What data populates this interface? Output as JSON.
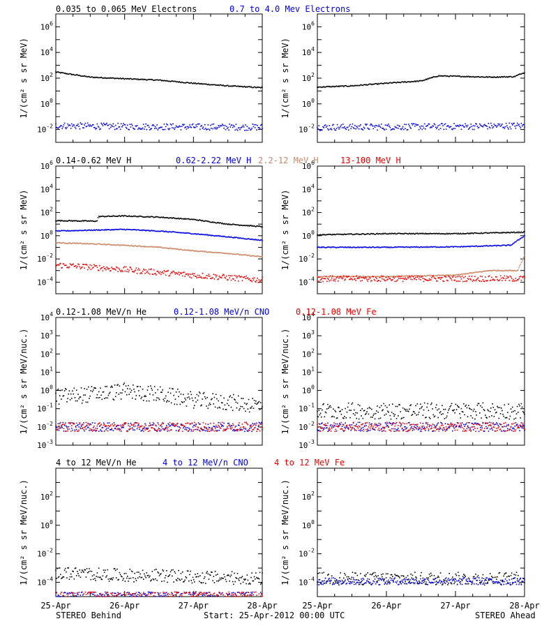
{
  "colors": {
    "black": "#000000",
    "blue": "#0000ee",
    "tan": "#cc8866",
    "red": "#ee0000"
  },
  "footer": {
    "left": "STEREO Behind",
    "center": "Start: 25-Apr-2012 00:00 UTC",
    "right": "STEREO Ahead"
  },
  "x_ticks": [
    "25-Apr",
    "26-Apr",
    "27-Apr",
    "28-Apr"
  ],
  "rows": [
    {
      "legend": [
        {
          "text": "0.035 to 0.065 MeV Electrons",
          "color": "#000000"
        },
        {
          "text": "0.7 to 4.0 Mev Electrons",
          "color": "#0000ee"
        }
      ],
      "ylabel": "1/(cm² s sr MeV)",
      "ylog_range": [
        -3,
        7
      ],
      "tick_exps": [
        -2,
        0,
        2,
        4,
        6
      ]
    },
    {
      "legend": [
        {
          "text": "0.14-0.62 MeV H",
          "color": "#000000"
        },
        {
          "text": "0.62-2.22 MeV H",
          "color": "#0000ee"
        },
        {
          "text": "2.2-12 MeV H",
          "color": "#cc8866"
        },
        {
          "text": "13-100 MeV H",
          "color": "#ee0000"
        }
      ],
      "ylabel": "1/(cm² s sr MeV)",
      "ylog_range": [
        -5,
        6
      ],
      "tick_exps": [
        -4,
        -2,
        0,
        2,
        4,
        6
      ]
    },
    {
      "legend": [
        {
          "text": "0.12-1.08 MeV/n He",
          "color": "#000000"
        },
        {
          "text": "0.12-1.08 MeV/n CNO",
          "color": "#0000ee"
        },
        {
          "text": "0.12-1.08 MeV Fe",
          "color": "#ee0000"
        }
      ],
      "ylabel": "1/(cm² s sr MeV/nuc.)",
      "ylog_range": [
        -3,
        4
      ],
      "tick_exps": [
        -3,
        -2,
        -1,
        0,
        1,
        2,
        3,
        4
      ]
    },
    {
      "legend": [
        {
          "text": "4 to 12 MeV/n He",
          "color": "#000000"
        },
        {
          "text": "4 to 12 MeV/n CNO",
          "color": "#0000ee"
        },
        {
          "text": "4 to 12 MeV Fe",
          "color": "#ee0000"
        }
      ],
      "ylabel": "1/(cm² s sr MeV/nuc.)",
      "ylog_range": [
        -5,
        4
      ],
      "tick_exps": [
        -4,
        -2,
        0,
        2
      ]
    }
  ],
  "chart_data": [
    {
      "type": "scatter",
      "panel": "STEREO Behind electrons",
      "ylog": true,
      "x_days": [
        0,
        3
      ],
      "series": [
        {
          "name": "0.035 to 0.065 MeV Electrons",
          "color": "#000000",
          "x": [
            0,
            0.5,
            1,
            1.5,
            2,
            2.5,
            3
          ],
          "y": [
            300,
            120,
            90,
            70,
            40,
            25,
            18
          ]
        },
        {
          "name": "0.7 to 4.0 Mev Electrons",
          "color": "#0000ee",
          "x": [
            0,
            1,
            2,
            3
          ],
          "y": [
            0.02,
            0.017,
            0.016,
            0.015
          ]
        }
      ]
    },
    {
      "type": "scatter",
      "panel": "STEREO Ahead electrons",
      "ylog": true,
      "x_days": [
        0,
        3
      ],
      "series": [
        {
          "name": "0.035 to 0.065 MeV Electrons",
          "color": "#000000",
          "x": [
            0,
            0.5,
            1,
            1.5,
            1.75,
            2,
            2.5,
            2.85,
            3
          ],
          "y": [
            20,
            25,
            40,
            60,
            150,
            140,
            120,
            130,
            280
          ]
        },
        {
          "name": "0.7 to 4.0 Mev Electrons",
          "color": "#0000ee",
          "x": [
            0,
            1,
            2,
            3
          ],
          "y": [
            0.015,
            0.016,
            0.017,
            0.02
          ]
        }
      ]
    },
    {
      "type": "scatter",
      "panel": "STEREO Behind protons",
      "ylog": true,
      "x_days": [
        0,
        3
      ],
      "series": [
        {
          "name": "0.14-0.62 MeV H",
          "color": "#000000",
          "x": [
            0,
            0.6,
            0.62,
            1,
            1.5,
            2,
            2.5,
            3
          ],
          "y": [
            20,
            18,
            45,
            50,
            40,
            25,
            10,
            6
          ]
        },
        {
          "name": "0.62-2.22 MeV H",
          "color": "#0000ee",
          "x": [
            0,
            0.5,
            1,
            1.5,
            2,
            2.5,
            3
          ],
          "y": [
            2.5,
            3,
            3.5,
            2.5,
            1.5,
            0.8,
            0.4
          ]
        },
        {
          "name": "2.2-12 MeV H",
          "color": "#cc8866",
          "x": [
            0,
            0.5,
            1,
            1.5,
            2,
            2.5,
            3
          ],
          "y": [
            0.25,
            0.2,
            0.15,
            0.1,
            0.05,
            0.03,
            0.015
          ]
        },
        {
          "name": "13-100 MeV H",
          "color": "#ee0000",
          "x": [
            0,
            0.5,
            1,
            1.5,
            2,
            2.5,
            3
          ],
          "y": [
            0.003,
            0.002,
            0.0012,
            0.0007,
            0.0004,
            0.00025,
            0.00015
          ]
        }
      ]
    },
    {
      "type": "scatter",
      "panel": "STEREO Ahead protons",
      "ylog": true,
      "x_days": [
        0,
        3
      ],
      "series": [
        {
          "name": "0.14-0.62 MeV H",
          "color": "#000000",
          "x": [
            0,
            1,
            2,
            3
          ],
          "y": [
            1.2,
            1.5,
            1.5,
            2
          ]
        },
        {
          "name": "0.62-2.22 MeV H",
          "color": "#0000ee",
          "x": [
            0,
            1,
            2,
            2.8,
            3
          ],
          "y": [
            0.1,
            0.1,
            0.11,
            0.15,
            1
          ]
        },
        {
          "name": "2.2-12 MeV H",
          "color": "#cc8866",
          "x": [
            0,
            1,
            2,
            2.5,
            2.9,
            3
          ],
          "y": [
            0.0003,
            0.0003,
            0.0004,
            0.001,
            0.001,
            0.02
          ]
        },
        {
          "name": "13-100 MeV H",
          "color": "#ee0000",
          "x": [
            0,
            1,
            2,
            3
          ],
          "y": [
            0.0002,
            0.0002,
            0.0002,
            0.0002
          ]
        }
      ]
    },
    {
      "type": "scatter",
      "panel": "STEREO Behind 0.12-1.08 MeV/n",
      "ylog": true,
      "x_days": [
        0,
        3
      ],
      "series": [
        {
          "name": "0.12-1.08 MeV/n He",
          "color": "#000000",
          "x": [
            0,
            0.5,
            1,
            1.5,
            2,
            2.5,
            3
          ],
          "y": [
            0.3,
            0.4,
            0.6,
            0.4,
            0.2,
            0.15,
            0.1
          ]
        },
        {
          "name": "0.12-1.08 MeV/n CNO",
          "color": "#0000ee",
          "x": [
            0,
            3
          ],
          "y": [
            0.01,
            0.01
          ]
        },
        {
          "name": "0.12-1.08 MeV Fe",
          "color": "#ee0000",
          "x": [
            0,
            3
          ],
          "y": [
            0.01,
            0.01
          ]
        }
      ]
    },
    {
      "type": "scatter",
      "panel": "STEREO Ahead 0.12-1.08 MeV/n",
      "ylog": true,
      "x_days": [
        0,
        3
      ],
      "series": [
        {
          "name": "0.12-1.08 MeV/n He",
          "color": "#000000",
          "x": [
            0,
            3
          ],
          "y": [
            0.05,
            0.05
          ]
        },
        {
          "name": "0.12-1.08 MeV/n CNO",
          "color": "#0000ee",
          "x": [
            0,
            3
          ],
          "y": [
            0.01,
            0.01
          ]
        },
        {
          "name": "0.12-1.08 MeV Fe",
          "color": "#ee0000",
          "x": [
            0,
            3
          ],
          "y": [
            0.01,
            0.01
          ]
        }
      ]
    },
    {
      "type": "scatter",
      "panel": "STEREO Behind 4 to 12 MeV/n",
      "ylog": true,
      "x_days": [
        0,
        3
      ],
      "series": [
        {
          "name": "4 to 12 MeV/n He",
          "color": "#000000",
          "x": [
            0,
            0.5,
            1,
            1.5,
            2,
            3
          ],
          "y": [
            0.0003,
            0.00025,
            0.0002,
            0.0002,
            0.00015,
            0.00012
          ]
        },
        {
          "name": "4 to 12 MeV/n CNO",
          "color": "#0000ee",
          "x": [
            0,
            3
          ],
          "y": [
            1.2e-05,
            1.2e-05
          ]
        },
        {
          "name": "4 to 12 MeV Fe",
          "color": "#ee0000",
          "x": [
            0,
            3
          ],
          "y": [
            1.2e-05,
            1.2e-05
          ]
        }
      ]
    },
    {
      "type": "scatter",
      "panel": "STEREO Ahead 4 to 12 MeV/n",
      "ylog": true,
      "x_days": [
        0,
        3
      ],
      "series": [
        {
          "name": "4 to 12 MeV/n He",
          "color": "#000000",
          "x": [
            0,
            3
          ],
          "y": [
            0.00012,
            0.00012
          ]
        },
        {
          "name": "4 to 12 MeV/n CNO",
          "color": "#0000ee",
          "x": [
            0,
            3
          ],
          "y": [
            0.00012,
            0.00012
          ]
        }
      ]
    }
  ]
}
